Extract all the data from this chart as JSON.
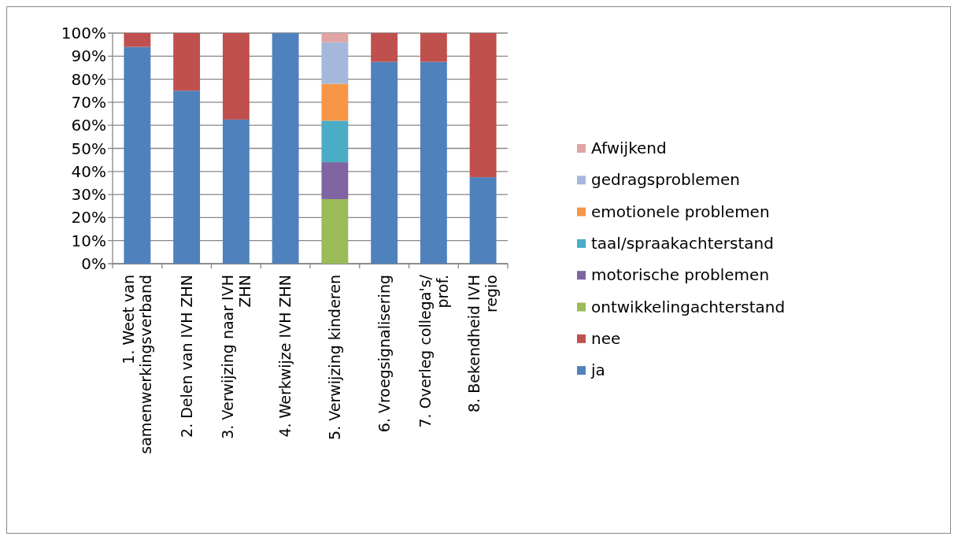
{
  "chart_data": {
    "type": "bar",
    "stacked": true,
    "categories": [
      "1. Weet van samenwerkingsverband",
      "2. Delen van IVH ZHN",
      "3. Verwijzing naar IVH ZHN",
      "4. Werkwijze IVH ZHN",
      "5. Verwijzing kinderen",
      "6. Vroegsignalisering",
      "7. Overleg collega's/ prof.",
      "8. Bekendheid IVH regio"
    ],
    "series": [
      {
        "name": "ja",
        "color": "#4f81bd",
        "values": [
          94,
          75,
          62.5,
          100,
          null,
          87.5,
          87.5,
          37.5
        ]
      },
      {
        "name": "nee",
        "color": "#c0504d",
        "values": [
          6,
          25,
          37.5,
          null,
          null,
          12.5,
          12.5,
          62.5
        ]
      },
      {
        "name": "ontwikkelingachterstand",
        "color": "#9bbb59",
        "values": [
          null,
          null,
          null,
          null,
          28,
          null,
          null,
          null
        ]
      },
      {
        "name": "motorische problemen",
        "color": "#8064a2",
        "values": [
          null,
          null,
          null,
          null,
          16,
          null,
          null,
          null
        ]
      },
      {
        "name": "taal/spraakachterstand",
        "color": "#4bacc6",
        "values": [
          null,
          null,
          null,
          null,
          18,
          null,
          null,
          null
        ]
      },
      {
        "name": "emotionele problemen",
        "color": "#f79646",
        "values": [
          null,
          null,
          null,
          null,
          16,
          null,
          null,
          null
        ]
      },
      {
        "name": "gedragsproblemen",
        "color": "#a5b8db",
        "values": [
          null,
          null,
          null,
          null,
          18,
          null,
          null,
          null
        ]
      },
      {
        "name": "Afwijkend",
        "color": "#e0a4a2",
        "values": [
          null,
          null,
          null,
          null,
          4,
          null,
          null,
          null
        ]
      }
    ],
    "ylim": [
      0,
      100
    ],
    "yticks": [
      {
        "value": 0,
        "label": "0%"
      },
      {
        "value": 10,
        "label": "10%"
      },
      {
        "value": 20,
        "label": "20%"
      },
      {
        "value": 30,
        "label": "30%"
      },
      {
        "value": 40,
        "label": "40%"
      },
      {
        "value": 50,
        "label": "50%"
      },
      {
        "value": 60,
        "label": "60%"
      },
      {
        "value": 70,
        "label": "70%"
      },
      {
        "value": 80,
        "label": "80%"
      },
      {
        "value": 90,
        "label": "90%"
      },
      {
        "value": 100,
        "label": "100%"
      }
    ],
    "grid": "y",
    "legend": "right"
  }
}
